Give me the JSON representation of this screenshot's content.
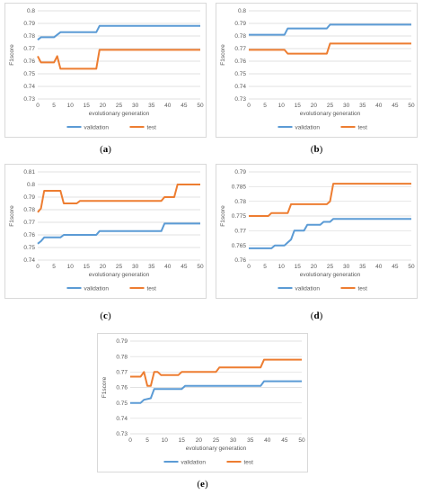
{
  "chart_data": [
    {
      "type": "line",
      "caption": "a",
      "xlabel": "evolutionary generation",
      "ylabel": "F1score",
      "xlim": [
        0,
        50
      ],
      "xticks": [
        0,
        5,
        10,
        15,
        20,
        25,
        30,
        35,
        40,
        45,
        50
      ],
      "ylim": [
        0.73,
        0.8
      ],
      "yticks": [
        0.73,
        0.74,
        0.75,
        0.76,
        0.77,
        0.78,
        0.79,
        0.8
      ],
      "ytick_labels": [
        "0.73",
        "0.74",
        "0.75",
        "0.76",
        "0.77",
        "0.78",
        "0.79",
        "0.8"
      ],
      "grid": true,
      "legend": "bottom",
      "series": [
        {
          "name": "validation",
          "color": "#5b9bd5",
          "points": [
            [
              0,
              0.777
            ],
            [
              1,
              0.779
            ],
            [
              5,
              0.779
            ],
            [
              7,
              0.783
            ],
            [
              18,
              0.783
            ],
            [
              19,
              0.788
            ],
            [
              50,
              0.788
            ]
          ]
        },
        {
          "name": "test",
          "color": "#ed7d31",
          "points": [
            [
              0,
              0.764
            ],
            [
              1,
              0.759
            ],
            [
              5,
              0.759
            ],
            [
              6,
              0.764
            ],
            [
              7,
              0.754
            ],
            [
              18,
              0.754
            ],
            [
              19,
              0.769
            ],
            [
              50,
              0.769
            ]
          ]
        }
      ]
    },
    {
      "type": "line",
      "caption": "b",
      "xlabel": "evolutionary generation",
      "ylabel": "F1score",
      "xlim": [
        0,
        50
      ],
      "xticks": [
        0,
        5,
        10,
        15,
        20,
        25,
        30,
        35,
        40,
        45,
        50
      ],
      "ylim": [
        0.73,
        0.8
      ],
      "yticks": [
        0.73,
        0.74,
        0.75,
        0.76,
        0.77,
        0.78,
        0.79,
        0.8
      ],
      "ytick_labels": [
        "0.73",
        "0.74",
        "0.75",
        "0.76",
        "0.77",
        "0.78",
        "0.79",
        "0.8"
      ],
      "grid": true,
      "legend": "bottom",
      "series": [
        {
          "name": "validation",
          "color": "#5b9bd5",
          "points": [
            [
              0,
              0.781
            ],
            [
              11,
              0.781
            ],
            [
              12,
              0.786
            ],
            [
              24,
              0.786
            ],
            [
              25,
              0.789
            ],
            [
              50,
              0.789
            ]
          ]
        },
        {
          "name": "test",
          "color": "#ed7d31",
          "points": [
            [
              0,
              0.769
            ],
            [
              11,
              0.769
            ],
            [
              12,
              0.766
            ],
            [
              24,
              0.766
            ],
            [
              25,
              0.774
            ],
            [
              50,
              0.774
            ]
          ]
        }
      ]
    },
    {
      "type": "line",
      "caption": "c",
      "xlabel": "evolutionary generation",
      "ylabel": "F1score",
      "xlim": [
        0,
        50
      ],
      "xticks": [
        0,
        5,
        10,
        15,
        20,
        25,
        30,
        35,
        40,
        45,
        50
      ],
      "ylim": [
        0.74,
        0.81
      ],
      "yticks": [
        0.74,
        0.75,
        0.76,
        0.77,
        0.78,
        0.79,
        0.8,
        0.81
      ],
      "ytick_labels": [
        "0.74",
        "0.75",
        "0.76",
        "0.77",
        "0.78",
        "0.79",
        "0.8",
        "0.81"
      ],
      "grid": true,
      "legend": "bottom",
      "series": [
        {
          "name": "validation",
          "color": "#5b9bd5",
          "points": [
            [
              0,
              0.753
            ],
            [
              1,
              0.755
            ],
            [
              2,
              0.758
            ],
            [
              7,
              0.758
            ],
            [
              8,
              0.76
            ],
            [
              18,
              0.76
            ],
            [
              19,
              0.763
            ],
            [
              38,
              0.763
            ],
            [
              39,
              0.769
            ],
            [
              50,
              0.769
            ]
          ]
        },
        {
          "name": "test",
          "color": "#ed7d31",
          "points": [
            [
              0,
              0.778
            ],
            [
              1,
              0.781
            ],
            [
              2,
              0.795
            ],
            [
              7,
              0.795
            ],
            [
              8,
              0.785
            ],
            [
              12,
              0.785
            ],
            [
              13,
              0.787
            ],
            [
              38,
              0.787
            ],
            [
              39,
              0.79
            ],
            [
              42,
              0.79
            ],
            [
              43,
              0.8
            ],
            [
              50,
              0.8
            ]
          ]
        }
      ]
    },
    {
      "type": "line",
      "caption": "d",
      "xlabel": "evolutionary generation",
      "ylabel": "F1score",
      "xlim": [
        0,
        50
      ],
      "xticks": [
        0,
        5,
        10,
        15,
        20,
        25,
        30,
        35,
        40,
        45,
        50
      ],
      "ylim": [
        0.76,
        0.79
      ],
      "yticks": [
        0.76,
        0.765,
        0.77,
        0.775,
        0.78,
        0.785,
        0.79
      ],
      "ytick_labels": [
        "0.76",
        "0.765",
        "0.77",
        "0.775",
        "0.78",
        "0.785",
        "0.79"
      ],
      "grid": true,
      "legend": "bottom",
      "series": [
        {
          "name": "validation",
          "color": "#5b9bd5",
          "points": [
            [
              0,
              0.764
            ],
            [
              7,
              0.764
            ],
            [
              8,
              0.765
            ],
            [
              11,
              0.765
            ],
            [
              12,
              0.766
            ],
            [
              13,
              0.767
            ],
            [
              14,
              0.77
            ],
            [
              17,
              0.77
            ],
            [
              18,
              0.772
            ],
            [
              22,
              0.772
            ],
            [
              23,
              0.773
            ],
            [
              25,
              0.773
            ],
            [
              26,
              0.774
            ],
            [
              50,
              0.774
            ]
          ]
        },
        {
          "name": "test",
          "color": "#ed7d31",
          "points": [
            [
              0,
              0.775
            ],
            [
              6,
              0.775
            ],
            [
              7,
              0.776
            ],
            [
              12,
              0.776
            ],
            [
              13,
              0.779
            ],
            [
              24,
              0.779
            ],
            [
              25,
              0.78
            ],
            [
              26,
              0.786
            ],
            [
              50,
              0.786
            ]
          ]
        }
      ]
    },
    {
      "type": "line",
      "caption": "e",
      "xlabel": "evolutionary generation",
      "ylabel": "F1score",
      "xlim": [
        0,
        50
      ],
      "xticks": [
        0,
        5,
        10,
        15,
        20,
        25,
        30,
        35,
        40,
        45,
        50
      ],
      "ylim": [
        0.73,
        0.79
      ],
      "yticks": [
        0.73,
        0.74,
        0.75,
        0.76,
        0.77,
        0.78,
        0.79
      ],
      "ytick_labels": [
        "0.73",
        "0.74",
        "0.75",
        "0.76",
        "0.77",
        "0.78",
        "0.79"
      ],
      "grid": true,
      "legend": "bottom",
      "series": [
        {
          "name": "validation",
          "color": "#5b9bd5",
          "points": [
            [
              0,
              0.75
            ],
            [
              3,
              0.75
            ],
            [
              4,
              0.752
            ],
            [
              6,
              0.753
            ],
            [
              7,
              0.759
            ],
            [
              15,
              0.759
            ],
            [
              16,
              0.761
            ],
            [
              38,
              0.761
            ],
            [
              39,
              0.764
            ],
            [
              50,
              0.764
            ]
          ]
        },
        {
          "name": "test",
          "color": "#ed7d31",
          "points": [
            [
              0,
              0.767
            ],
            [
              3,
              0.767
            ],
            [
              4,
              0.77
            ],
            [
              5,
              0.761
            ],
            [
              6,
              0.761
            ],
            [
              7,
              0.77
            ],
            [
              8,
              0.77
            ],
            [
              9,
              0.768
            ],
            [
              14,
              0.768
            ],
            [
              15,
              0.77
            ],
            [
              25,
              0.77
            ],
            [
              26,
              0.773
            ],
            [
              38,
              0.773
            ],
            [
              39,
              0.778
            ],
            [
              50,
              0.778
            ]
          ]
        }
      ]
    }
  ]
}
